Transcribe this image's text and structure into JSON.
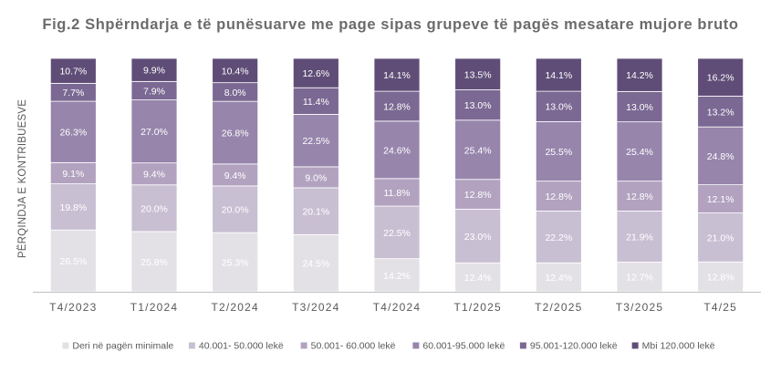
{
  "chart_data": {
    "type": "bar",
    "stacked": true,
    "title": "Fig.2  Shpërndarja e të punësuarve me page sipas grupeve të pagës mesatare mujore bruto",
    "ylabel": "PËRQINDJA E KONTRIBUESVE",
    "xlabel": "",
    "ylim": [
      0,
      100
    ],
    "grid": false,
    "legend_position": "bottom",
    "categories": [
      "T4/2023",
      "T1/2024",
      "T2/2024",
      "T3/2024",
      "T4/2024",
      "T1/2025",
      "T2/2025",
      "T3/2025",
      "T4/25"
    ],
    "series": [
      {
        "name": "Deri në pagën minimale",
        "color": "#e4e1e6",
        "label_color": "#ffffff",
        "values": [
          26.5,
          25.8,
          25.3,
          24.5,
          14.2,
          12.4,
          12.4,
          12.7,
          12.8
        ],
        "labels": [
          "26.5%",
          "25.8%",
          "25.3%",
          "24.5%",
          "14.2%",
          "12.4%",
          "12.4%",
          "12.7%",
          "12.8%"
        ]
      },
      {
        "name": "40.001- 50.000 lekë",
        "color": "#c9bfd3",
        "label_color": "#ffffff",
        "values": [
          19.8,
          20.0,
          20.0,
          20.1,
          22.5,
          23.0,
          22.2,
          21.9,
          21.0
        ],
        "labels": [
          "19.8%",
          "20.0%",
          "20.0%",
          "20.1%",
          "22.5%",
          "23.0%",
          "22.2%",
          "21.9%",
          "21.0%"
        ]
      },
      {
        "name": "50.001- 60.000 lekë",
        "color": "#b2a2c0",
        "label_color": "#ffffff",
        "values": [
          9.1,
          9.4,
          9.4,
          9.0,
          11.8,
          12.8,
          12.8,
          12.8,
          12.1
        ],
        "labels": [
          "9.1%",
          "9.4%",
          "9.4%",
          "9.0%",
          "11.8%",
          "12.8%",
          "12.8%",
          "12.8%",
          "12.1%"
        ]
      },
      {
        "name": "60.001-95.000 lekë",
        "color": "#9785ac",
        "label_color": "#ffffff",
        "values": [
          26.3,
          27.0,
          26.8,
          22.5,
          24.6,
          25.4,
          25.5,
          25.4,
          24.8
        ],
        "labels": [
          "26.3%",
          "27.0%",
          "26.8%",
          "22.5%",
          "24.6%",
          "25.4%",
          "25.5%",
          "25.4%",
          "24.8%"
        ]
      },
      {
        "name": "95.001-120.000 lekë",
        "color": "#7b6893",
        "label_color": "#ffffff",
        "values": [
          7.7,
          7.9,
          8.0,
          11.4,
          12.8,
          13.0,
          13.0,
          13.0,
          13.2
        ],
        "labels": [
          "7.7%",
          "7.9%",
          "8.0%",
          "11.4%",
          "12.8%",
          "13.0%",
          "13.0%",
          "13.0%",
          "13.2%"
        ]
      },
      {
        "name": "Mbi 120.000 lekë",
        "color": "#5f4d77",
        "label_color": "#ffffff",
        "values": [
          10.7,
          9.9,
          10.4,
          12.6,
          14.1,
          13.5,
          14.1,
          14.2,
          16.2
        ],
        "labels": [
          "10.7%",
          "9.9%",
          "10.4%",
          "12.6%",
          "14.1%",
          "13.5%",
          "14.1%",
          "14.2%",
          "16.2%"
        ]
      }
    ],
    "colors": {
      "axis_line": "#bfbfbf",
      "tick_text": "#595959",
      "title_text": "#6b6b6b"
    }
  }
}
